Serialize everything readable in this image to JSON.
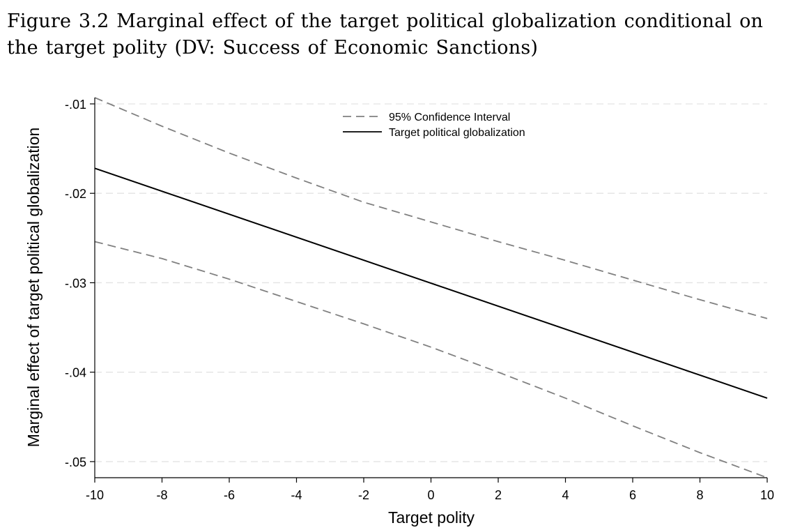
{
  "caption": "Figure 3.2 Marginal effect of the target political globalization conditional on the target polity (DV: Success of Economic Sanctions)",
  "chart_data": {
    "type": "line",
    "xlabel": "Target polity",
    "ylabel": "Marginal effect of target political globalization",
    "xlim": [
      -10,
      10
    ],
    "ylim": [
      -0.0518,
      -0.0093
    ],
    "x_ticks": [
      {
        "value": -10,
        "label": "-10"
      },
      {
        "value": -8,
        "label": "-8"
      },
      {
        "value": -6,
        "label": "-6"
      },
      {
        "value": -4,
        "label": "-4"
      },
      {
        "value": -2,
        "label": "-2"
      },
      {
        "value": 0,
        "label": "0"
      },
      {
        "value": 2,
        "label": "2"
      },
      {
        "value": 4,
        "label": "4"
      },
      {
        "value": 6,
        "label": "6"
      },
      {
        "value": 8,
        "label": "8"
      },
      {
        "value": 10,
        "label": "10"
      }
    ],
    "y_ticks": [
      {
        "value": -0.01,
        "label": "-.01"
      },
      {
        "value": -0.02,
        "label": "-.02"
      },
      {
        "value": -0.03,
        "label": "-.03"
      },
      {
        "value": -0.04,
        "label": "-.04"
      },
      {
        "value": -0.05,
        "label": "-.05"
      }
    ],
    "grid": true,
    "legend_position": "top",
    "series": [
      {
        "name": "95% Confidence Interval",
        "role": "upper",
        "style": "dashed",
        "color": "#808080",
        "x": [
          -10,
          -8,
          -6,
          -4,
          -2,
          0,
          2,
          4,
          6,
          8,
          10
        ],
        "y": [
          -0.0093,
          -0.0125,
          -0.0155,
          -0.0183,
          -0.021,
          -0.0232,
          -0.0254,
          -0.0275,
          -0.0297,
          -0.0319,
          -0.034
        ]
      },
      {
        "name": "Target political globalization",
        "role": "estimate",
        "style": "solid",
        "color": "#000000",
        "x": [
          -10,
          10
        ],
        "y": [
          -0.0172,
          -0.0429
        ]
      },
      {
        "role": "lower",
        "style": "dashed",
        "color": "#808080",
        "x": [
          -10,
          -8,
          -6,
          -4,
          -2,
          0,
          2,
          4,
          6,
          8,
          10
        ],
        "y": [
          -0.0254,
          -0.0273,
          -0.0296,
          -0.0321,
          -0.0346,
          -0.0372,
          -0.04,
          -0.0429,
          -0.046,
          -0.049,
          -0.0518
        ]
      }
    ]
  }
}
